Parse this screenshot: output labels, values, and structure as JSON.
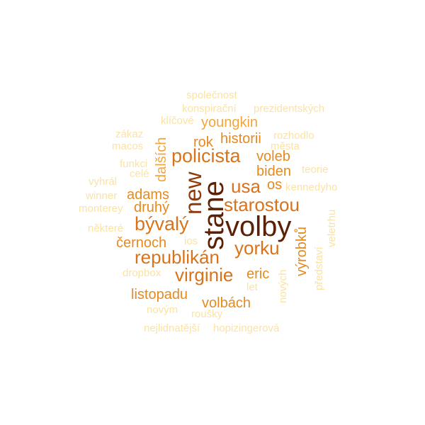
{
  "colors": {
    "c1": "#FBE3A6",
    "c2": "#F4A53A",
    "c3": "#E58A20",
    "c4": "#D9731B",
    "c5": "#8E3A0B",
    "c6": "#5A2105"
  },
  "words": [
    {
      "text": "společnost",
      "weight": 1
    },
    {
      "text": "konspirační",
      "weight": 1
    },
    {
      "text": "prezidentských",
      "weight": 1
    },
    {
      "text": "klíčové",
      "weight": 1
    },
    {
      "text": "youngkin",
      "weight": 3
    },
    {
      "text": "zákaz",
      "weight": 1
    },
    {
      "text": "macos",
      "weight": 1
    },
    {
      "text": "dalších",
      "weight": 3
    },
    {
      "text": "historii",
      "weight": 3
    },
    {
      "text": "rozhodlo",
      "weight": 1
    },
    {
      "text": "města",
      "weight": 1
    },
    {
      "text": "rok",
      "weight": 3
    },
    {
      "text": "policista",
      "weight": 4
    },
    {
      "text": "voleb",
      "weight": 3
    },
    {
      "text": "funkci",
      "weight": 1
    },
    {
      "text": "celé",
      "weight": 1
    },
    {
      "text": "biden",
      "weight": 3
    },
    {
      "text": "teorie",
      "weight": 1
    },
    {
      "text": "vyhrál",
      "weight": 1
    },
    {
      "text": "new",
      "weight": 5
    },
    {
      "text": "usa",
      "weight": 4
    },
    {
      "text": "os",
      "weight": 3
    },
    {
      "text": "kennedyho",
      "weight": 1
    },
    {
      "text": "winner",
      "weight": 1
    },
    {
      "text": "adams",
      "weight": 3
    },
    {
      "text": "stane",
      "weight": 6
    },
    {
      "text": "starostou",
      "weight": 4
    },
    {
      "text": "monterey",
      "weight": 1
    },
    {
      "text": "druhý",
      "weight": 3
    },
    {
      "text": "veletrhu",
      "weight": 1
    },
    {
      "text": "bývalý",
      "weight": 4
    },
    {
      "text": "volby",
      "weight": 6
    },
    {
      "text": "některé",
      "weight": 1
    },
    {
      "text": "výrobků",
      "weight": 3
    },
    {
      "text": "černoch",
      "weight": 3
    },
    {
      "text": "ios",
      "weight": 1
    },
    {
      "text": "yorku",
      "weight": 4
    },
    {
      "text": "představí",
      "weight": 1
    },
    {
      "text": "republikán",
      "weight": 4
    },
    {
      "text": "dropbox",
      "weight": 1
    },
    {
      "text": "virginie",
      "weight": 4
    },
    {
      "text": "eric",
      "weight": 3
    },
    {
      "text": "nových",
      "weight": 1
    },
    {
      "text": "let",
      "weight": 1
    },
    {
      "text": "listopadu",
      "weight": 3
    },
    {
      "text": "volbách",
      "weight": 3
    },
    {
      "text": "novým",
      "weight": 1
    },
    {
      "text": "roušky",
      "weight": 1
    },
    {
      "text": "nejlidnatější",
      "weight": 1
    },
    {
      "text": "hopizingerová",
      "weight": 1
    }
  ]
}
